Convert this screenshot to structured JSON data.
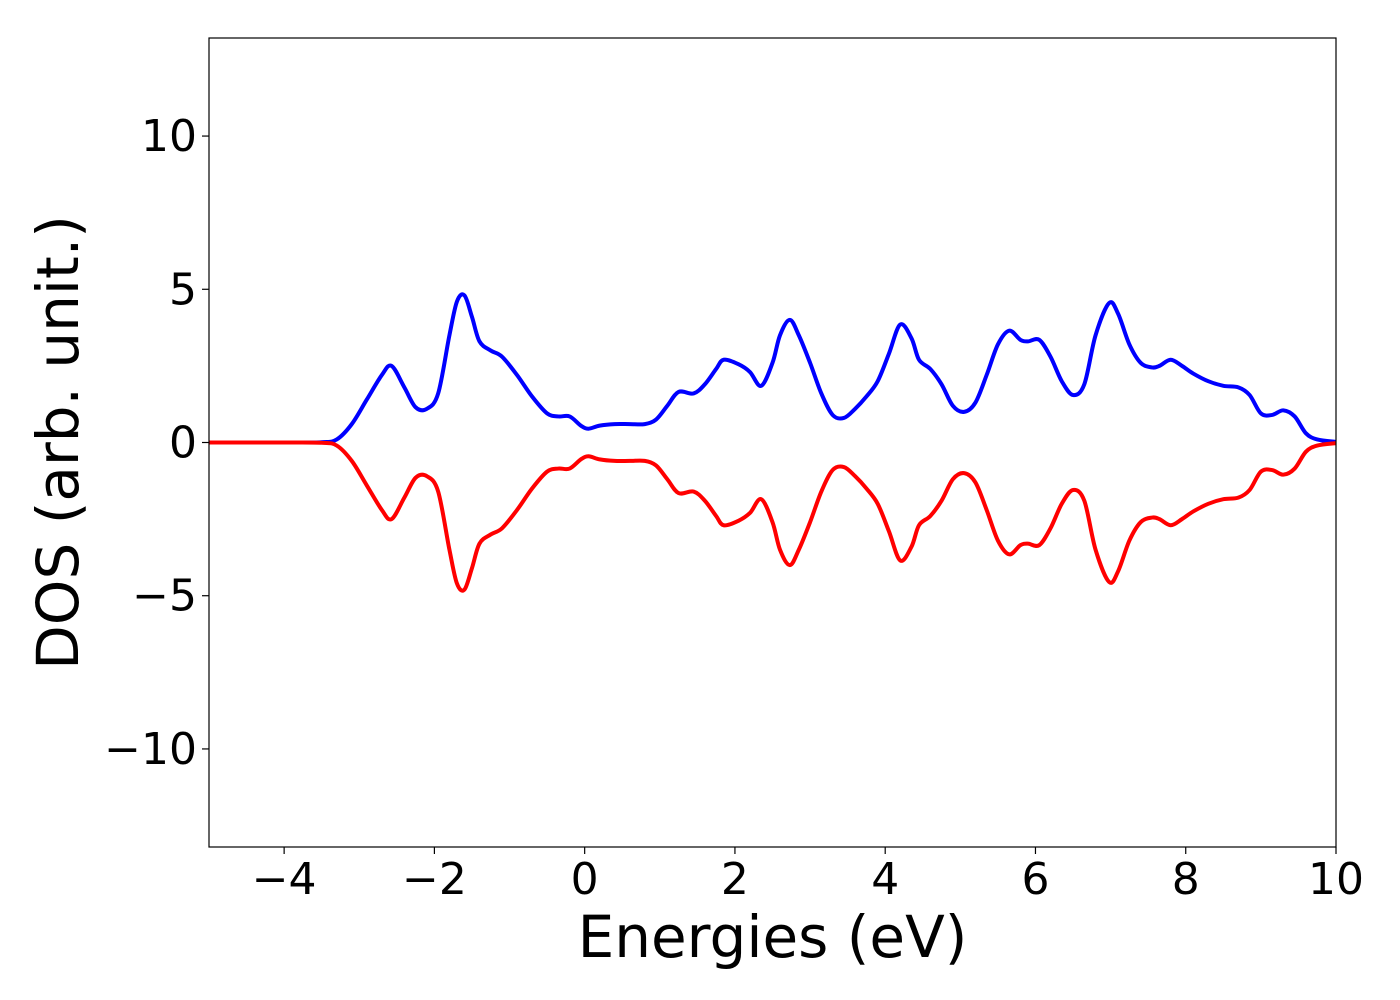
{
  "chart_data": {
    "type": "line",
    "xlabel": "Energies (eV)",
    "ylabel": "DOS (arb. unit.)",
    "xlim": [
      -5,
      10
    ],
    "ylim": [
      -13.2,
      13.2
    ],
    "xticks": [
      -4,
      -2,
      0,
      2,
      4,
      6,
      8,
      10
    ],
    "xtick_labels": [
      "−4",
      "−2",
      "0",
      "2",
      "4",
      "6",
      "8",
      "10"
    ],
    "yticks": [
      10,
      5,
      0,
      -5,
      -10
    ],
    "ytick_labels": [
      "10",
      "5",
      "0",
      "−5",
      "−10"
    ],
    "grid": false,
    "colors": {
      "upper": "#0000ff",
      "lower": "#ff0000",
      "axes": "#000000"
    },
    "x": [
      -5.0,
      -4.0,
      -3.5,
      -3.3,
      -3.1,
      -2.9,
      -2.7,
      -2.57,
      -2.4,
      -2.25,
      -2.1,
      -1.95,
      -1.8,
      -1.7,
      -1.6,
      -1.5,
      -1.4,
      -1.25,
      -1.1,
      -0.9,
      -0.7,
      -0.5,
      -0.35,
      -0.2,
      -0.05,
      0.05,
      0.2,
      0.4,
      0.6,
      0.8,
      0.95,
      1.1,
      1.25,
      1.45,
      1.6,
      1.75,
      1.85,
      2.05,
      2.2,
      2.35,
      2.5,
      2.6,
      2.73,
      2.85,
      3.0,
      3.15,
      3.3,
      3.45,
      3.6,
      3.75,
      3.9,
      4.05,
      4.2,
      4.35,
      4.45,
      4.6,
      4.75,
      4.9,
      5.05,
      5.2,
      5.35,
      5.5,
      5.65,
      5.8,
      5.9,
      6.05,
      6.2,
      6.35,
      6.5,
      6.65,
      6.8,
      6.98,
      7.1,
      7.25,
      7.4,
      7.55,
      7.65,
      7.8,
      7.95,
      8.1,
      8.3,
      8.5,
      8.7,
      8.85,
      9.0,
      9.15,
      9.3,
      9.45,
      9.6,
      9.75,
      10.0
    ],
    "series": [
      {
        "values": [
          0,
          0,
          0.01,
          0.1,
          0.6,
          1.4,
          2.2,
          2.5,
          1.8,
          1.15,
          1.1,
          1.6,
          3.5,
          4.6,
          4.8,
          4.1,
          3.3,
          3.0,
          2.8,
          2.2,
          1.5,
          0.95,
          0.85,
          0.85,
          0.55,
          0.45,
          0.55,
          0.6,
          0.6,
          0.6,
          0.75,
          1.2,
          1.65,
          1.6,
          1.9,
          2.4,
          2.7,
          2.55,
          2.3,
          1.85,
          2.6,
          3.5,
          4.0,
          3.5,
          2.6,
          1.6,
          0.9,
          0.8,
          1.1,
          1.5,
          2.0,
          2.9,
          3.85,
          3.4,
          2.7,
          2.4,
          1.9,
          1.2,
          1.0,
          1.3,
          2.2,
          3.2,
          3.65,
          3.35,
          3.3,
          3.35,
          2.8,
          2.0,
          1.55,
          1.9,
          3.5,
          4.55,
          4.2,
          3.2,
          2.6,
          2.45,
          2.5,
          2.7,
          2.5,
          2.25,
          2.0,
          1.85,
          1.8,
          1.55,
          0.95,
          0.9,
          1.05,
          0.85,
          0.3,
          0.1,
          0.02
        ]
      },
      {
        "values": [
          0,
          0,
          -0.01,
          -0.1,
          -0.6,
          -1.4,
          -2.2,
          -2.5,
          -1.8,
          -1.15,
          -1.1,
          -1.6,
          -3.5,
          -4.6,
          -4.8,
          -4.1,
          -3.3,
          -3.0,
          -2.8,
          -2.2,
          -1.5,
          -0.95,
          -0.85,
          -0.85,
          -0.55,
          -0.45,
          -0.55,
          -0.6,
          -0.6,
          -0.6,
          -0.75,
          -1.2,
          -1.65,
          -1.6,
          -1.9,
          -2.4,
          -2.7,
          -2.55,
          -2.3,
          -1.85,
          -2.6,
          -3.5,
          -4.0,
          -3.5,
          -2.6,
          -1.6,
          -0.9,
          -0.8,
          -1.1,
          -1.5,
          -2.0,
          -2.9,
          -3.85,
          -3.4,
          -2.7,
          -2.4,
          -1.9,
          -1.2,
          -1.0,
          -1.3,
          -2.2,
          -3.2,
          -3.65,
          -3.35,
          -3.3,
          -3.35,
          -2.8,
          -2.0,
          -1.55,
          -1.9,
          -3.5,
          -4.55,
          -4.2,
          -3.2,
          -2.6,
          -2.45,
          -2.5,
          -2.7,
          -2.5,
          -2.25,
          -2.0,
          -1.85,
          -1.8,
          -1.55,
          -0.95,
          -0.9,
          -1.05,
          -0.85,
          -0.3,
          -0.1,
          -0.02
        ]
      }
    ]
  }
}
